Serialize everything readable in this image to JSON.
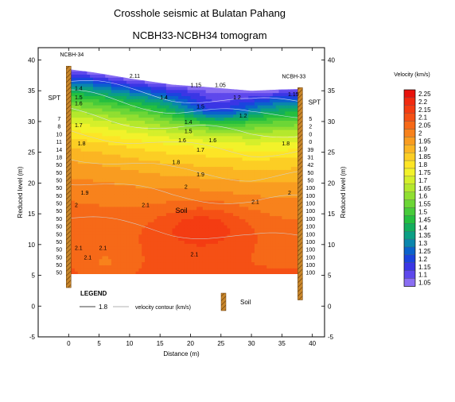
{
  "chart_data": {
    "type": "heatmap",
    "title": "Crosshole seismic at Bulatan Pahang",
    "subtitle": "NCBH33-NCBH34 tomogram",
    "xlabel": "Distance (m)",
    "ylabel": "Reduced level (m)",
    "ylabel_right": "Reduced level (m)",
    "xlim": [
      -5,
      42
    ],
    "ylim": [
      -5,
      42
    ],
    "x_ticks": [
      0,
      5,
      10,
      15,
      20,
      25,
      30,
      35,
      40
    ],
    "y_ticks": [
      -5,
      0,
      5,
      10,
      15,
      20,
      25,
      30,
      35,
      40
    ],
    "grid": false,
    "colorbar": {
      "title": "Velocity (km/s)",
      "levels": [
        "2.25",
        "2.2",
        "2.15",
        "2.1",
        "2.05",
        "2",
        "1.95",
        "1.9",
        "1.85",
        "1.8",
        "1.75",
        "1.7",
        "1.65",
        "1.6",
        "1.55",
        "1.5",
        "1.45",
        "1.4",
        "1.35",
        "1.3",
        "1.25",
        "1.2",
        "1.15",
        "1.1",
        "1.05"
      ],
      "colors": [
        "#e8120c",
        "#f22a10",
        "#f43c12",
        "#f55015",
        "#f66918",
        "#f8821c",
        "#f99c20",
        "#fbb523",
        "#fcce24",
        "#fde526",
        "#f2f22a",
        "#d5ef2b",
        "#b4e82d",
        "#90df31",
        "#6cd636",
        "#47cb3a",
        "#25bf3f",
        "#13ae5d",
        "#0b9f85",
        "#0a86ad",
        "#0a62cc",
        "#1a44de",
        "#3a36e5",
        "#5e48ec",
        "#8a6ef2"
      ]
    },
    "boreholes": [
      {
        "name": "NCBH-34",
        "x": 0,
        "top": 39,
        "bottom": 3
      },
      {
        "name": "NCBH-33",
        "x": 38,
        "top": 35.5,
        "bottom": 1
      }
    ],
    "spt_label": "SPT",
    "spt_left": [
      "7",
      "8",
      "10",
      "11",
      "14",
      "18",
      "50",
      "50",
      "50",
      "50",
      "50",
      "50",
      "50",
      "50",
      "50",
      "50",
      "50",
      "50",
      "50",
      "50",
      "50"
    ],
    "spt_right": [
      "5",
      "2",
      "0",
      "0",
      "39",
      "31",
      "42",
      "50",
      "50",
      "100",
      "100",
      "100",
      "100",
      "100",
      "100",
      "100",
      "100",
      "100",
      "100",
      "100",
      "100"
    ],
    "contour_labels": [
      {
        "text": "2.11",
        "x": 10,
        "y": 37.5
      },
      {
        "text": "1.15",
        "x": 20,
        "y": 36
      },
      {
        "text": "1.05",
        "x": 24,
        "y": 36
      },
      {
        "text": "1.4",
        "x": 1,
        "y": 35.5
      },
      {
        "text": "1.5",
        "x": 1,
        "y": 34
      },
      {
        "text": "1.6",
        "x": 1,
        "y": 33
      },
      {
        "text": "1.4",
        "x": 15,
        "y": 34
      },
      {
        "text": "1.2",
        "x": 27,
        "y": 34
      },
      {
        "text": "1.15",
        "x": 36,
        "y": 34.5
      },
      {
        "text": "1.5",
        "x": 21,
        "y": 32.5
      },
      {
        "text": "1.2",
        "x": 28,
        "y": 31
      },
      {
        "text": "1.4",
        "x": 19,
        "y": 30
      },
      {
        "text": "1.5",
        "x": 19,
        "y": 28.5
      },
      {
        "text": "1.7",
        "x": 1,
        "y": 29.5
      },
      {
        "text": "1.6",
        "x": 18,
        "y": 27
      },
      {
        "text": "1.6",
        "x": 23,
        "y": 27
      },
      {
        "text": "1.8",
        "x": 1.5,
        "y": 26.5
      },
      {
        "text": "1.7",
        "x": 21,
        "y": 25.5
      },
      {
        "text": "1.8",
        "x": 35,
        "y": 26.5
      },
      {
        "text": "1.8",
        "x": 17,
        "y": 23.5
      },
      {
        "text": "1.9",
        "x": 21,
        "y": 21.5
      },
      {
        "text": "2",
        "x": 19,
        "y": 19.5
      },
      {
        "text": "1.9",
        "x": 2,
        "y": 18.5
      },
      {
        "text": "2",
        "x": 36,
        "y": 18.5
      },
      {
        "text": "2.1",
        "x": 30,
        "y": 17
      },
      {
        "text": "2.1",
        "x": 12,
        "y": 16.5
      },
      {
        "text": "2",
        "x": 1,
        "y": 16.5
      },
      {
        "text": "2.1",
        "x": 1,
        "y": 9.5
      },
      {
        "text": "2.1",
        "x": 5,
        "y": 9.5
      },
      {
        "text": "2.1",
        "x": 2.5,
        "y": 8
      },
      {
        "text": "2.1",
        "x": 20,
        "y": 8.5
      }
    ],
    "annotations": [
      {
        "text": "Soil",
        "x": 18.5,
        "y": 15.5
      }
    ],
    "legend": {
      "title": "LEGEND",
      "contour_value": "1.8",
      "contour_text": "velocity contour (km/s)",
      "soil_text": "Soil"
    }
  }
}
